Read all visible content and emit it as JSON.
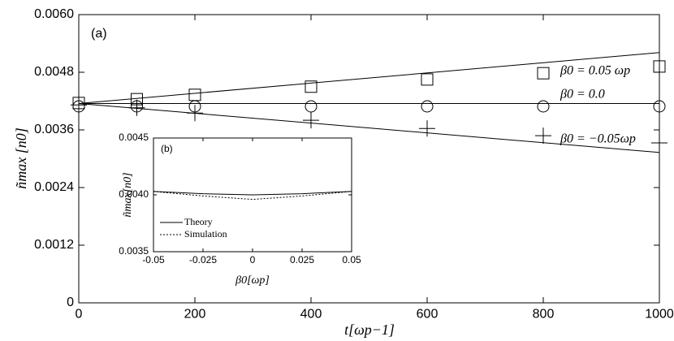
{
  "chart_data": [
    {
      "type": "line",
      "xlabel": "t[ωp−1]",
      "ylabel": "ñmax [n0]",
      "annotations": [
        "(a)",
        "β0 = 0.05 ωp",
        "β0 = 0.0",
        "β0 = −0.05ωp"
      ],
      "xlim": [
        0,
        1000
      ],
      "xticks": [
        0,
        200,
        400,
        600,
        800,
        1000
      ],
      "ylim": [
        0,
        0.006
      ],
      "yticks": [
        0,
        0.0012,
        0.0024,
        0.0036,
        0.0048,
        {
          "value": 0.006,
          "label": "0.0060"
        }
      ],
      "series": [
        {
          "type": "line",
          "color": "#000000",
          "x": [
            0,
            1000
          ],
          "values": [
            0.00415,
            0.00521
          ]
        },
        {
          "type": "line",
          "color": "#000000",
          "x": [
            0,
            1000
          ],
          "values": [
            0.00415,
            0.00415
          ]
        },
        {
          "type": "line",
          "color": "#000000",
          "x": [
            0,
            1000
          ],
          "values": [
            0.00415,
            0.00313
          ]
        },
        {
          "type": "scatter",
          "marker": "square",
          "color": "#000000",
          "x": [
            0,
            100,
            200,
            400,
            600,
            800,
            1000
          ],
          "values": [
            0.00416,
            0.00424,
            0.00433,
            0.0045,
            0.00465,
            0.00478,
            0.00492
          ]
        },
        {
          "type": "scatter",
          "marker": "circle",
          "color": "#000000",
          "x": [
            0,
            100,
            200,
            400,
            600,
            800,
            1000
          ],
          "values": [
            0.00409,
            0.00409,
            0.00409,
            0.00409,
            0.00409,
            0.00409,
            0.00409
          ]
        },
        {
          "type": "scatter",
          "marker": "plus",
          "color": "#000000",
          "x": [
            0,
            100,
            200,
            400,
            600,
            800,
            1000
          ],
          "values": [
            0.00412,
            0.00406,
            0.00395,
            0.0038,
            0.00363,
            0.00348,
            0.00333
          ]
        }
      ]
    },
    {
      "type": "line",
      "xlabel": "β0[ωp]",
      "ylabel": "ñmax[n0]",
      "annotations": [
        "(b)"
      ],
      "xlim": [
        -0.05,
        0.05
      ],
      "xticks": [
        -0.05,
        -0.025,
        0,
        0.025,
        0.05
      ],
      "ylim": [
        0.0035,
        0.0045
      ],
      "yticks": [
        0.0035,
        {
          "value": 0.004,
          "label": "0.0040"
        },
        0.0045
      ],
      "series": [
        {
          "name": "Theory",
          "type": "line",
          "color": "#000000",
          "x": [
            -0.05,
            -0.025,
            0,
            0.025,
            0.05
          ],
          "values": [
            0.00403,
            0.00401,
            0.004,
            0.00401,
            0.00403
          ]
        },
        {
          "name": "Simulation",
          "type": "line",
          "dash": true,
          "color": "#000000",
          "x": [
            -0.05,
            -0.025,
            0,
            0.025,
            0.05
          ],
          "values": [
            0.00403,
            0.00399,
            0.00396,
            0.00399,
            0.00403
          ]
        }
      ]
    }
  ]
}
